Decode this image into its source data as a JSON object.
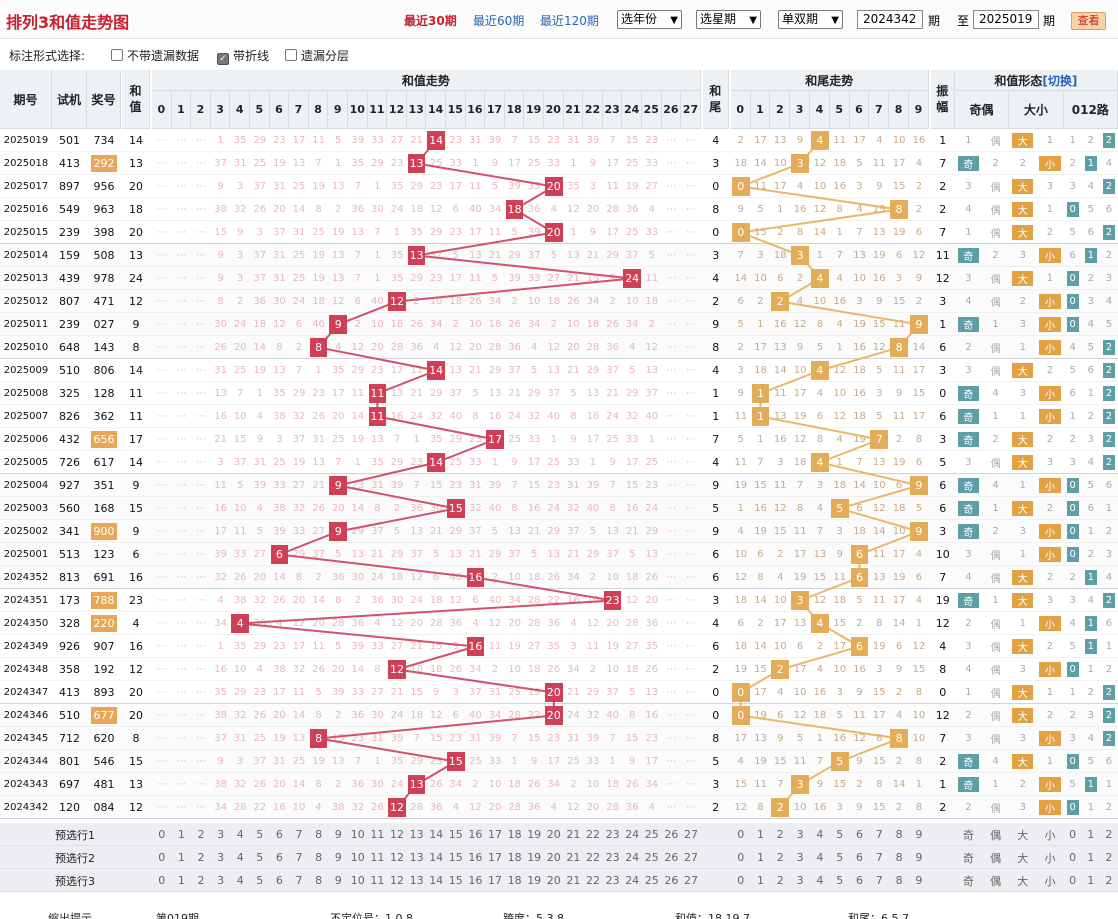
{
  "header": {
    "title": "排列3和值走势图",
    "period_links": [
      "最近30期",
      "最近60期",
      "最近120期"
    ],
    "selects": [
      "选年份",
      "选星期",
      "单双期"
    ],
    "from_value": "2024342",
    "from_suffix": "期",
    "to_prefix": "至",
    "to_value": "2025019",
    "to_suffix": "期",
    "view_button": "查看"
  },
  "options": {
    "label": "标注形式选择:",
    "items": [
      {
        "label": "不带遗漏数据",
        "checked": false
      },
      {
        "label": "带折线",
        "checked": true
      },
      {
        "label": "遗漏分层",
        "checked": false
      }
    ]
  },
  "columns": {
    "issue": "期号",
    "trial": "试机",
    "prize": "奖号",
    "sum": "和值",
    "sum_trend": "和值走势",
    "tail": "和尾",
    "tail_trend": "和尾走势",
    "form": "和值形态",
    "switch": "[切换]",
    "amp": "振幅",
    "parity": "奇偶",
    "size": "大小",
    "route": "012路",
    "sum_range": [
      0,
      1,
      2,
      3,
      4,
      5,
      6,
      7,
      8,
      9,
      10,
      11,
      12,
      13,
      14,
      15,
      16,
      17,
      18,
      19,
      20,
      21,
      22,
      23,
      24,
      25,
      26,
      27
    ],
    "tail_range": [
      0,
      1,
      2,
      3,
      4,
      5,
      6,
      7,
      8,
      9
    ],
    "form_labels": [
      "奇",
      "偶",
      "大",
      "小",
      "0",
      "1",
      "2"
    ]
  },
  "rows": [
    {
      "issue": "2025019",
      "trial": "501",
      "prize": "734",
      "hot": false,
      "sum": 14,
      "tail": 4,
      "amp": "1",
      "parity": "偶",
      "size": "大",
      "route": 2
    },
    {
      "issue": "2025018",
      "trial": "413",
      "prize": "292",
      "hot": true,
      "sum": 13,
      "tail": 3,
      "amp": "7",
      "parity": "奇",
      "size": "小",
      "route": 1
    },
    {
      "issue": "2025017",
      "trial": "897",
      "prize": "956",
      "hot": false,
      "sum": 20,
      "tail": 0,
      "amp": "2",
      "parity": "偶",
      "size": "大",
      "route": 2
    },
    {
      "issue": "2025016",
      "trial": "549",
      "prize": "963",
      "hot": false,
      "sum": 18,
      "tail": 8,
      "amp": "2",
      "parity": "偶",
      "size": "大",
      "route": 0
    },
    {
      "issue": "2025015",
      "trial": "239",
      "prize": "398",
      "hot": false,
      "sum": 20,
      "tail": 0,
      "amp": "7",
      "parity": "偶",
      "size": "大",
      "route": 2
    },
    {
      "issue": "2025014",
      "trial": "159",
      "prize": "508",
      "hot": false,
      "sum": 13,
      "tail": 3,
      "amp": "11",
      "parity": "奇",
      "size": "小",
      "route": 1
    },
    {
      "issue": "2025013",
      "trial": "439",
      "prize": "978",
      "hot": false,
      "sum": 24,
      "tail": 4,
      "amp": "12",
      "parity": "偶",
      "size": "大",
      "route": 0
    },
    {
      "issue": "2025012",
      "trial": "807",
      "prize": "471",
      "hot": false,
      "sum": 12,
      "tail": 2,
      "amp": "3",
      "parity": "偶",
      "size": "小",
      "route": 0
    },
    {
      "issue": "2025011",
      "trial": "239",
      "prize": "027",
      "hot": false,
      "sum": 9,
      "tail": 9,
      "amp": "1",
      "parity": "奇",
      "size": "小",
      "route": 0
    },
    {
      "issue": "2025010",
      "trial": "648",
      "prize": "143",
      "hot": false,
      "sum": 8,
      "tail": 8,
      "amp": "6",
      "parity": "偶",
      "size": "小",
      "route": 2
    },
    {
      "issue": "2025009",
      "trial": "510",
      "prize": "806",
      "hot": false,
      "sum": 14,
      "tail": 4,
      "amp": "3",
      "parity": "偶",
      "size": "大",
      "route": 2
    },
    {
      "issue": "2025008",
      "trial": "325",
      "prize": "128",
      "hot": false,
      "sum": 11,
      "tail": 1,
      "amp": "0",
      "parity": "奇",
      "size": "小",
      "route": 2
    },
    {
      "issue": "2025007",
      "trial": "826",
      "prize": "362",
      "hot": false,
      "sum": 11,
      "tail": 1,
      "amp": "6",
      "parity": "奇",
      "size": "小",
      "route": 2
    },
    {
      "issue": "2025006",
      "trial": "432",
      "prize": "656",
      "hot": true,
      "sum": 17,
      "tail": 7,
      "amp": "3",
      "parity": "奇",
      "size": "大",
      "route": 2
    },
    {
      "issue": "2025005",
      "trial": "726",
      "prize": "617",
      "hot": false,
      "sum": 14,
      "tail": 4,
      "amp": "5",
      "parity": "偶",
      "size": "大",
      "route": 2
    },
    {
      "issue": "2025004",
      "trial": "927",
      "prize": "351",
      "hot": false,
      "sum": 9,
      "tail": 9,
      "amp": "6",
      "parity": "奇",
      "size": "小",
      "route": 0
    },
    {
      "issue": "2025003",
      "trial": "560",
      "prize": "168",
      "hot": false,
      "sum": 15,
      "tail": 5,
      "amp": "6",
      "parity": "奇",
      "size": "大",
      "route": 0
    },
    {
      "issue": "2025002",
      "trial": "341",
      "prize": "900",
      "hot": true,
      "sum": 9,
      "tail": 9,
      "amp": "3",
      "parity": "奇",
      "size": "小",
      "route": 0
    },
    {
      "issue": "2025001",
      "trial": "513",
      "prize": "123",
      "hot": false,
      "sum": 6,
      "tail": 6,
      "amp": "10",
      "parity": "偶",
      "size": "小",
      "route": 0
    },
    {
      "issue": "2024352",
      "trial": "813",
      "prize": "691",
      "hot": false,
      "sum": 16,
      "tail": 6,
      "amp": "7",
      "parity": "偶",
      "size": "大",
      "route": 1
    },
    {
      "issue": "2024351",
      "trial": "173",
      "prize": "788",
      "hot": true,
      "sum": 23,
      "tail": 3,
      "amp": "19",
      "parity": "奇",
      "size": "大",
      "route": 2
    },
    {
      "issue": "2024350",
      "trial": "328",
      "prize": "220",
      "hot": true,
      "sum": 4,
      "tail": 4,
      "amp": "12",
      "parity": "偶",
      "size": "小",
      "route": 1
    },
    {
      "issue": "2024349",
      "trial": "926",
      "prize": "907",
      "hot": false,
      "sum": 16,
      "tail": 6,
      "amp": "4",
      "parity": "偶",
      "size": "大",
      "route": 1
    },
    {
      "issue": "2024348",
      "trial": "358",
      "prize": "192",
      "hot": false,
      "sum": 12,
      "tail": 2,
      "amp": "8",
      "parity": "偶",
      "size": "小",
      "route": 0
    },
    {
      "issue": "2024347",
      "trial": "413",
      "prize": "893",
      "hot": false,
      "sum": 20,
      "tail": 0,
      "amp": "0",
      "parity": "偶",
      "size": "大",
      "route": 2
    },
    {
      "issue": "2024346",
      "trial": "510",
      "prize": "677",
      "hot": true,
      "sum": 20,
      "tail": 0,
      "amp": "12",
      "parity": "偶",
      "size": "大",
      "route": 2
    },
    {
      "issue": "2024345",
      "trial": "712",
      "prize": "620",
      "hot": false,
      "sum": 8,
      "tail": 8,
      "amp": "7",
      "parity": "偶",
      "size": "小",
      "route": 2
    },
    {
      "issue": "2024344",
      "trial": "801",
      "prize": "546",
      "hot": false,
      "sum": 15,
      "tail": 5,
      "amp": "2",
      "parity": "奇",
      "size": "大",
      "route": 0
    },
    {
      "issue": "2024343",
      "trial": "697",
      "prize": "481",
      "hot": false,
      "sum": 13,
      "tail": 3,
      "amp": "1",
      "parity": "奇",
      "size": "小",
      "route": 1
    },
    {
      "issue": "2024342",
      "trial": "120",
      "prize": "084",
      "hot": false,
      "sum": 12,
      "tail": 2,
      "amp": "2",
      "parity": "偶",
      "size": "小",
      "route": 0
    }
  ],
  "footer_rows": [
    "预选行1",
    "预选行2",
    "预选行3"
  ],
  "tips": [
    "缩出提示",
    "第019期",
    "不定位号：1 0 8",
    "跨度：5 3 8",
    "和值：18 19 7",
    "和尾：6 5 7"
  ],
  "colors": {
    "ball_red": "#cf4057",
    "ball_orange": "#e3ac58",
    "line_red": "#d3516b",
    "line_orange": "#e8b86a"
  }
}
